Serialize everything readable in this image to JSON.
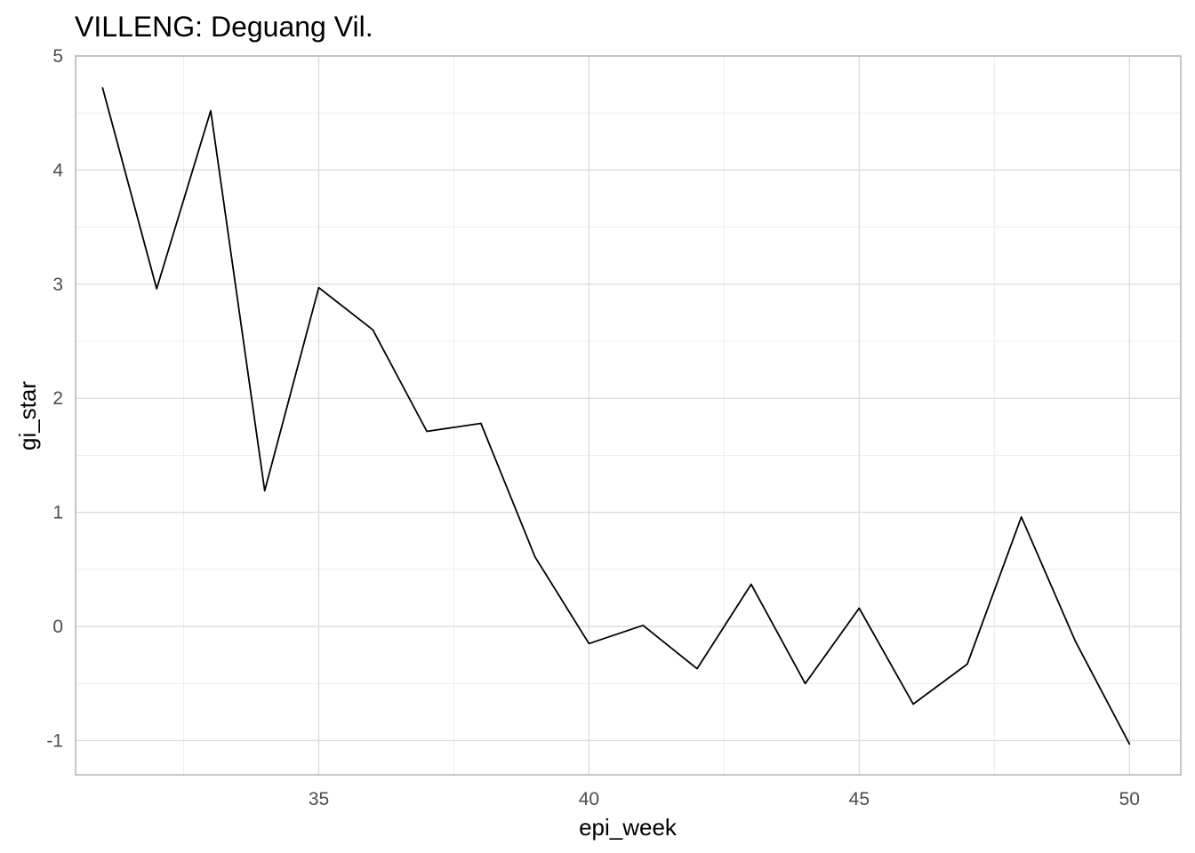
{
  "chart_data": {
    "type": "line",
    "title": "VILLENG: Deguang Vil.",
    "xlabel": "epi_week",
    "ylabel": "gi_star",
    "xlim": [
      30.5,
      50.95
    ],
    "ylim": [
      -1.3,
      5.0
    ],
    "x_ticks": [
      35,
      40,
      45,
      50
    ],
    "y_ticks": [
      -1,
      0,
      1,
      2,
      3,
      4,
      5
    ],
    "x_tick_labels": [
      "35",
      "40",
      "45",
      "50"
    ],
    "y_tick_labels": [
      "-1",
      "0",
      "1",
      "2",
      "3",
      "4",
      "5"
    ],
    "grid": true,
    "legend": false,
    "line_color": "#000000",
    "series": [
      {
        "x": [
          31,
          32,
          33,
          34,
          35,
          36,
          37,
          38,
          39,
          40,
          41,
          42,
          43,
          44,
          45,
          46,
          47,
          48,
          49,
          50
        ],
        "values": [
          4.72,
          2.96,
          4.52,
          1.19,
          2.97,
          2.6,
          1.71,
          1.78,
          0.61,
          -0.15,
          0.01,
          -0.37,
          0.37,
          -0.5,
          0.16,
          -0.68,
          -0.33,
          0.96,
          -0.13,
          -1.03
        ]
      }
    ]
  }
}
